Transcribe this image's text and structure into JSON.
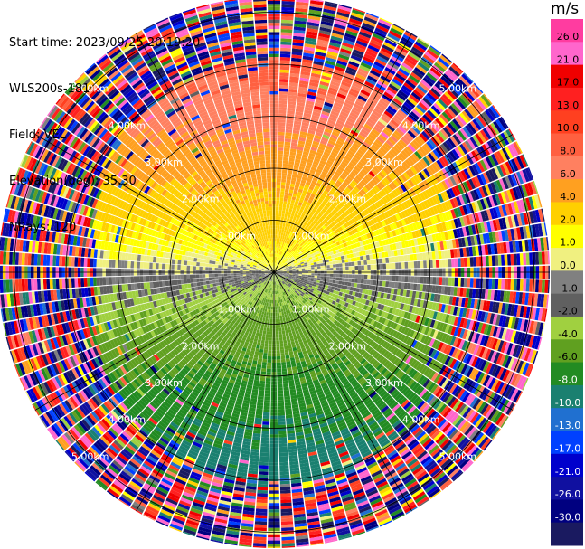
{
  "header": {
    "start_time": "Start time: 2023/09/25 20:19:20",
    "instrument": "WLS200s-181",
    "field": "Field: VEL",
    "elevation": "Elevation(deg): 35.30",
    "nrays": "NRays: 120"
  },
  "colorbar": {
    "unit": "m/s",
    "ticks": [
      "26.0",
      "21.0",
      "17.0",
      "13.0",
      "10.0",
      "8.0",
      "6.0",
      "4.0",
      "2.0",
      "1.0",
      "0.0",
      "-1.0",
      "-2.0",
      "-4.0",
      "-6.0",
      "-8.0",
      "-10.0",
      "-13.0",
      "-17.0",
      "-21.0",
      "-26.0",
      "-30.0"
    ],
    "colors": [
      "#ff3ca0",
      "#ff66cc",
      "#f00000",
      "#ff2020",
      "#ff4020",
      "#ff6040",
      "#ff8060",
      "#ffa020",
      "#ffd000",
      "#ffff00",
      "#f0f080",
      "#808080",
      "#606060",
      "#a0d040",
      "#60a020",
      "#228b22",
      "#1a8070",
      "#2070d0",
      "#0040ff",
      "#0000cc",
      "#1010a0",
      "#000080",
      "#1a1a60"
    ]
  },
  "chart_data": {
    "type": "ppi",
    "field": "VEL",
    "units": "m/s",
    "nrays": 120,
    "range_rings_km": [
      1.0,
      2.0,
      3.0,
      4.0,
      5.0
    ],
    "range_ring_labels": [
      "1.00km",
      "2.00km",
      "3.00km",
      "4.00km",
      "5.00km"
    ],
    "max_range_km": 5.4,
    "spokes_deg": [
      0,
      30,
      60,
      90,
      120,
      150,
      180,
      210,
      240,
      270,
      300,
      330
    ],
    "velocity_range": [
      -30.0,
      26.0
    ],
    "pattern": {
      "north_near": "positive 1-10 m/s (yellow/orange), strongest ~8-10 m/s around 2.5-3.5 km",
      "south_near": "negative -1 to -8 m/s (green/teal)",
      "east_west_near": "near zero (gray)",
      "far_range": "noise (all colors)"
    }
  }
}
